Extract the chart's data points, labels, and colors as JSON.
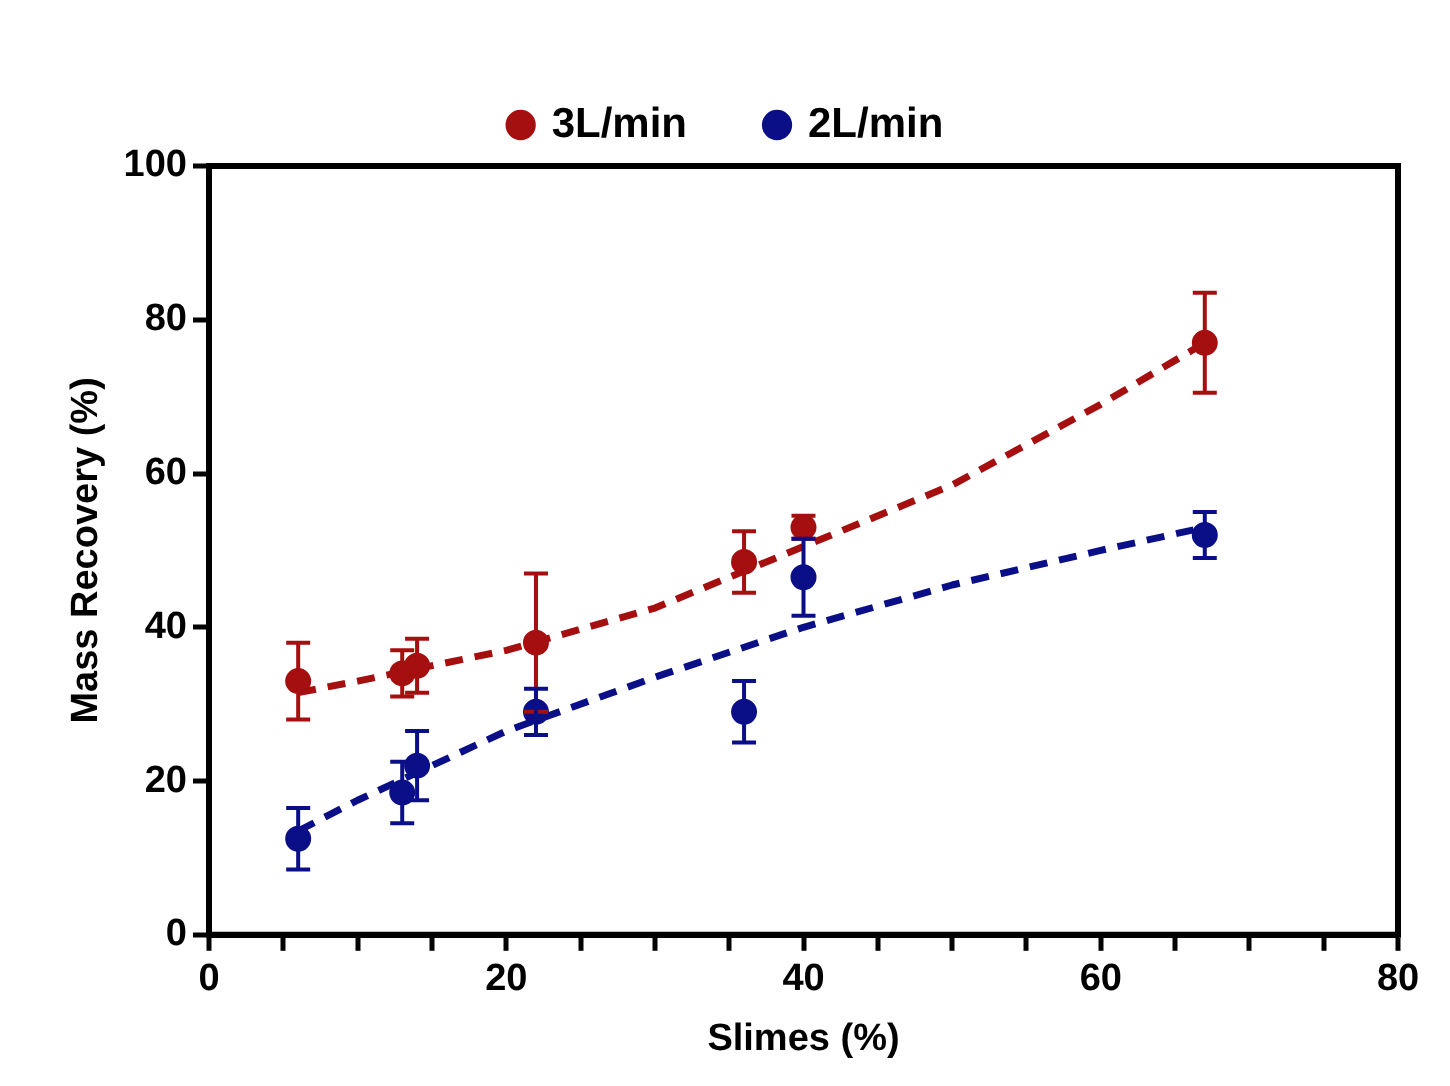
{
  "chart_data": {
    "type": "scatter",
    "xlabel": "Slimes (%)",
    "ylabel": "Mass Recovery (%)",
    "xlim": [
      0,
      80
    ],
    "ylim": [
      0,
      100
    ],
    "xticks": [
      0,
      {
        "value": 5,
        "label": null
      },
      {
        "value": 10,
        "label": null
      },
      {
        "value": 15,
        "label": null
      },
      20,
      {
        "value": 25,
        "label": null
      },
      {
        "value": 30,
        "label": null
      },
      {
        "value": 35,
        "label": null
      },
      40,
      {
        "value": 45,
        "label": null
      },
      {
        "value": 50,
        "label": null
      },
      {
        "value": 55,
        "label": null
      },
      60,
      {
        "value": 65,
        "label": null
      },
      {
        "value": 70,
        "label": null
      },
      {
        "value": 75,
        "label": null
      },
      80
    ],
    "yticks": [
      0,
      20,
      40,
      60,
      80,
      100
    ],
    "grid": false,
    "legend": "top",
    "marker": "circle",
    "series": [
      {
        "name": "3L/min",
        "color": "#a50f0f",
        "x": [
          6,
          13,
          14,
          22,
          36,
          40,
          67
        ],
        "values": [
          33,
          34,
          35,
          38,
          48.5,
          53,
          77
        ],
        "errors": [
          5,
          3,
          3.5,
          9,
          4,
          1.5,
          6.5
        ]
      },
      {
        "type": "line",
        "color": "#a50f0f",
        "line_style": "dashed",
        "marker": "none",
        "x": [
          6,
          10,
          20,
          30,
          40,
          50,
          60,
          67
        ],
        "values": [
          31.5,
          33,
          37,
          42.5,
          50.5,
          58.5,
          69,
          77
        ]
      },
      {
        "name": "2L/min",
        "color": "#0a0f87",
        "x": [
          6,
          13,
          14,
          22,
          36,
          40,
          67
        ],
        "values": [
          12.5,
          18.5,
          22,
          29,
          29,
          46.5,
          52
        ],
        "errors": [
          4,
          4,
          4.5,
          3,
          4,
          5,
          3
        ]
      },
      {
        "type": "line",
        "color": "#0a0f87",
        "line_style": "dashed",
        "marker": "none",
        "x": [
          6,
          10,
          20,
          30,
          40,
          50,
          60,
          67
        ],
        "values": [
          13.5,
          17.5,
          26.5,
          33.5,
          40,
          45.5,
          50,
          53
        ]
      }
    ]
  }
}
